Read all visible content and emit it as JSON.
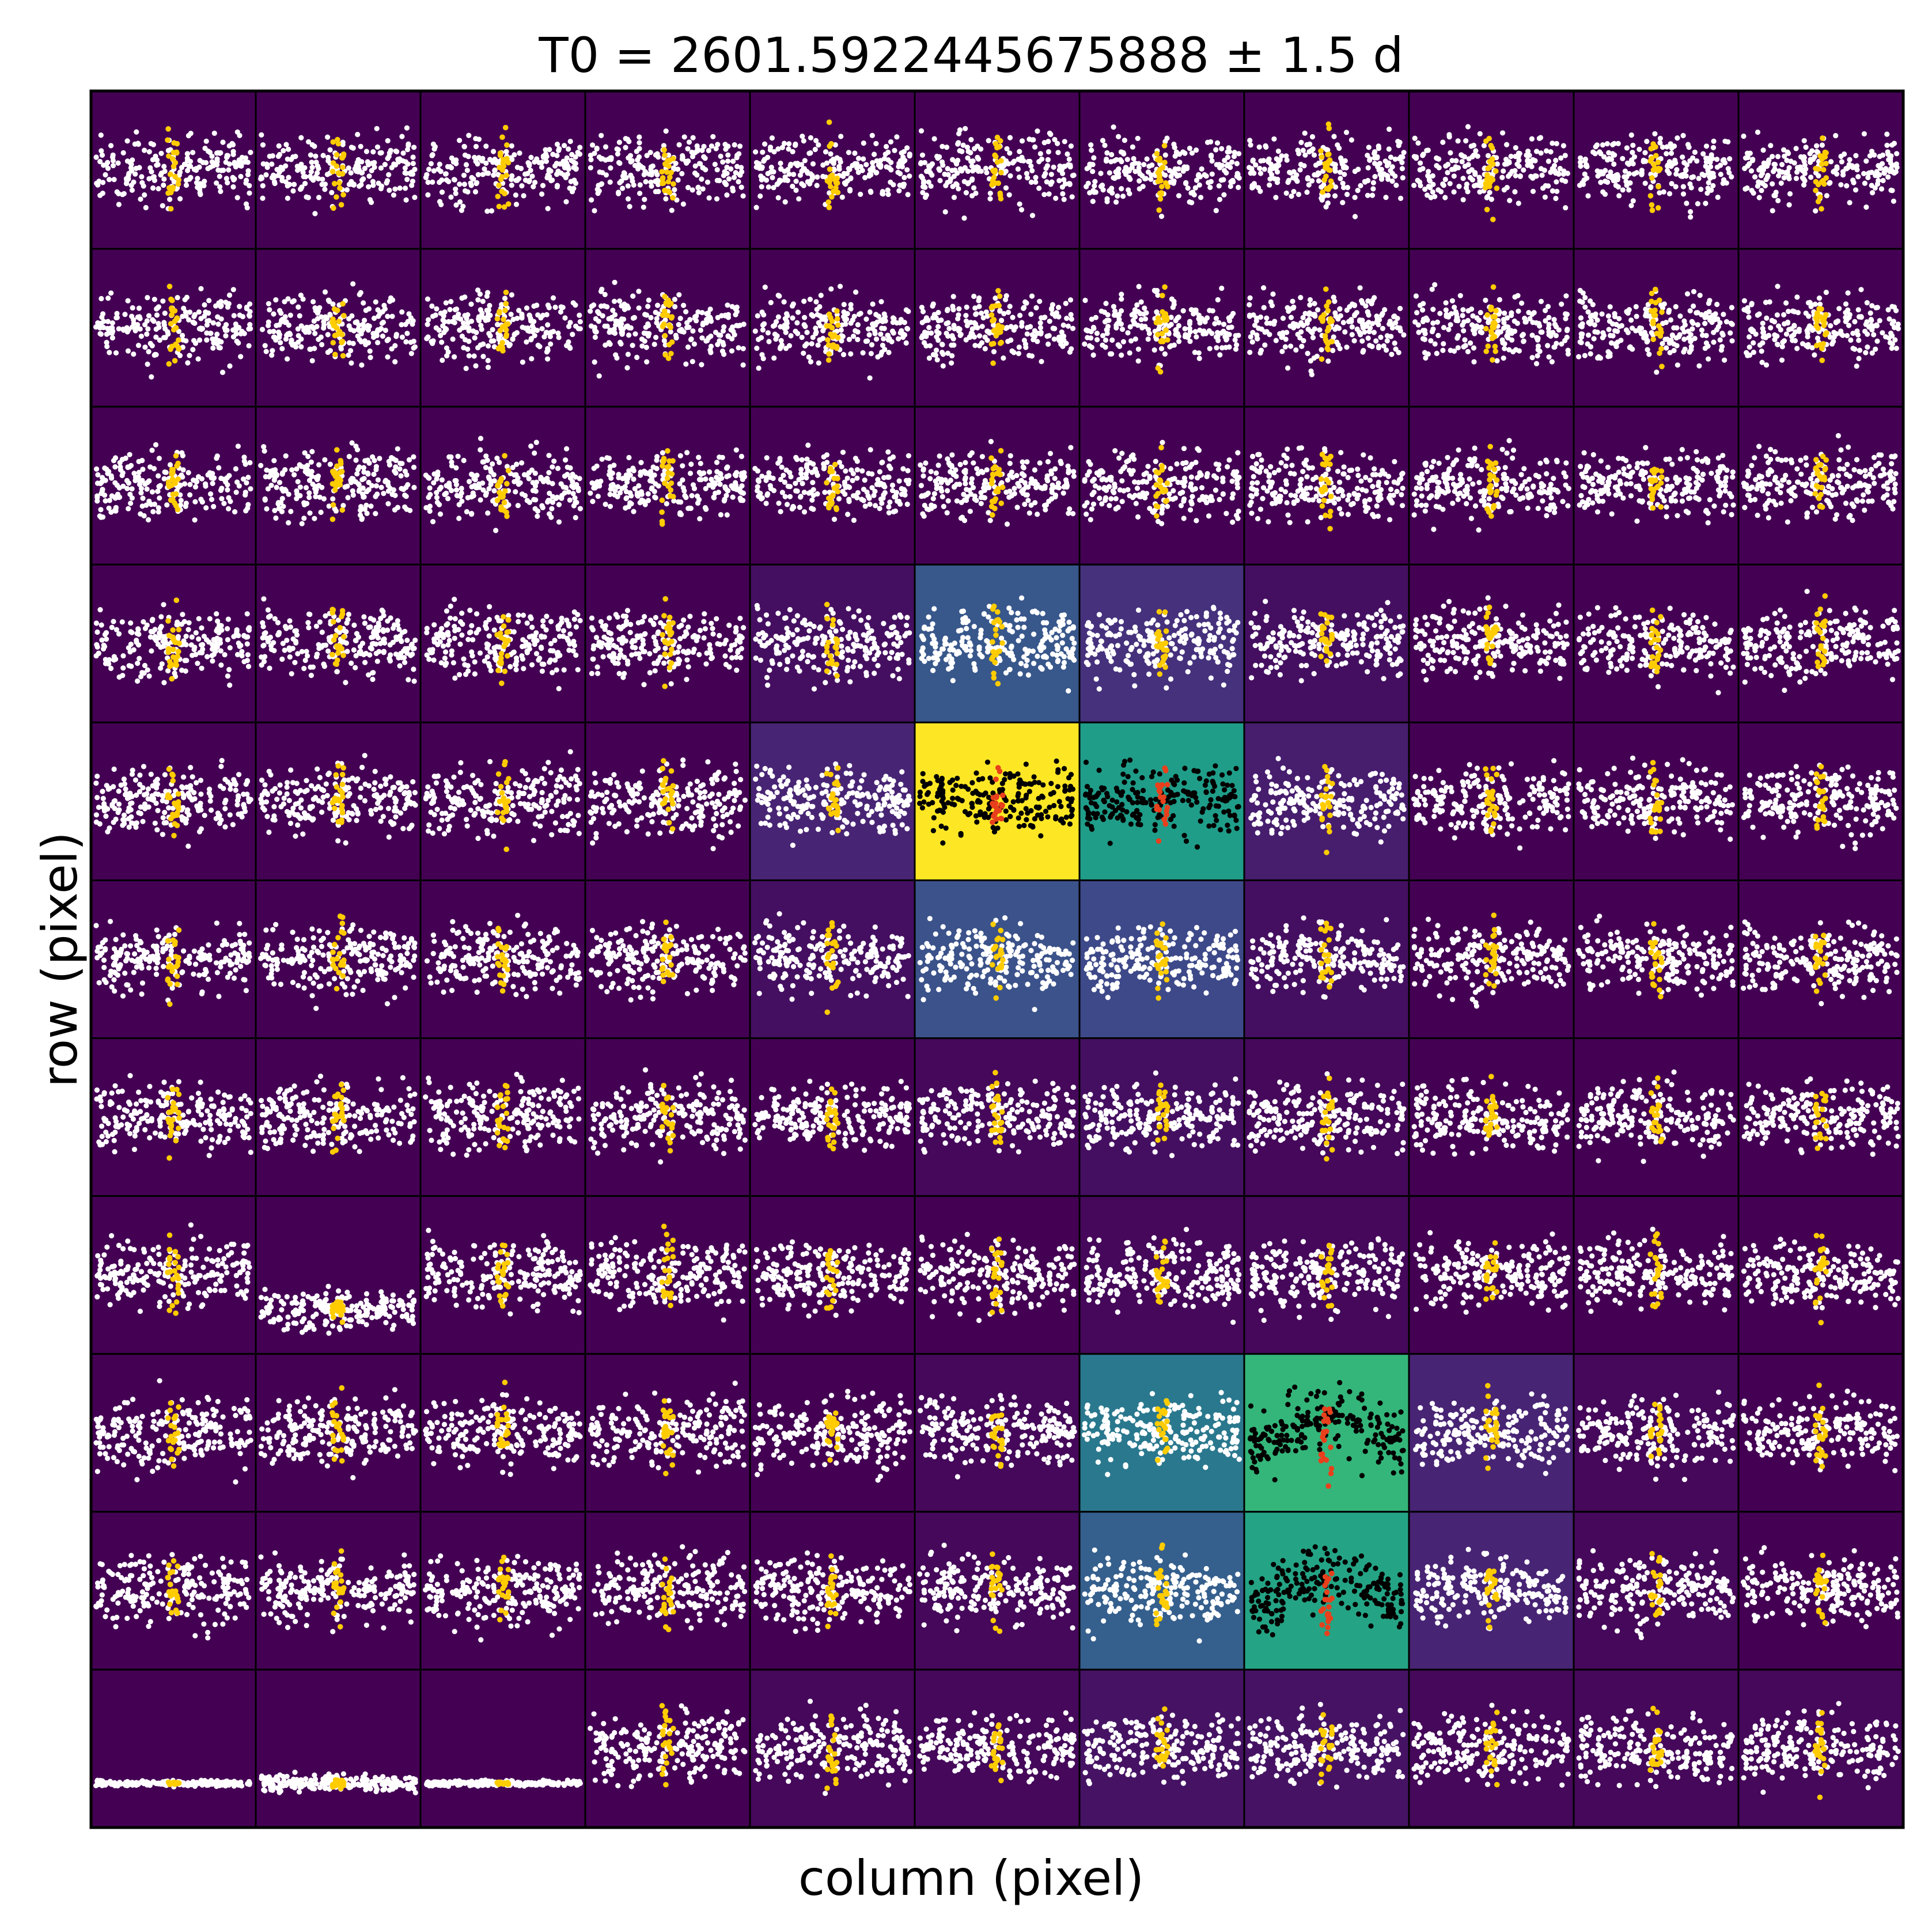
{
  "chart_data": {
    "type": "scatter",
    "title": "T0 = 2601.5922445675888 ± 1.5 d",
    "xlabel": "column (pixel)",
    "ylabel": "row (pixel)",
    "grid": {
      "rows": 11,
      "cols": 11
    },
    "colormap": "viridis",
    "colormap_stops": [
      "#440154",
      "#482878",
      "#3e4a89",
      "#31688e",
      "#26828e",
      "#1f9e89",
      "#35b779",
      "#6ece58",
      "#b5de2b",
      "#fde725"
    ],
    "pixel_flux_normalized": [
      [
        0.0,
        0.0,
        0.0,
        0.0,
        0.0,
        0.0,
        0.0,
        0.0,
        0.0,
        0.0,
        0.0
      ],
      [
        0.0,
        0.0,
        0.0,
        0.0,
        0.0,
        0.0,
        0.0,
        0.0,
        0.0,
        0.0,
        0.0
      ],
      [
        0.0,
        0.0,
        0.0,
        0.0,
        0.0,
        0.0,
        0.0,
        0.0,
        0.0,
        0.0,
        0.0
      ],
      [
        0.0,
        0.0,
        0.0,
        0.0,
        0.04,
        0.27,
        0.14,
        0.04,
        0.0,
        0.0,
        0.0
      ],
      [
        0.0,
        0.0,
        0.0,
        0.0,
        0.1,
        1.0,
        0.55,
        0.08,
        0.0,
        0.0,
        0.0
      ],
      [
        0.0,
        0.0,
        0.0,
        0.0,
        0.04,
        0.25,
        0.22,
        0.04,
        0.0,
        0.0,
        0.0
      ],
      [
        0.0,
        0.0,
        0.0,
        0.0,
        0.0,
        0.02,
        0.04,
        0.02,
        0.0,
        0.0,
        0.0
      ],
      [
        0.0,
        0.0,
        0.0,
        0.0,
        0.0,
        0.0,
        0.02,
        0.02,
        0.0,
        0.0,
        0.0
      ],
      [
        0.0,
        0.0,
        0.0,
        0.0,
        0.0,
        0.02,
        0.4,
        0.66,
        0.1,
        0.02,
        0.0
      ],
      [
        0.0,
        0.0,
        0.0,
        0.0,
        0.0,
        0.02,
        0.3,
        0.58,
        0.1,
        0.02,
        0.0
      ],
      [
        0.0,
        0.0,
        0.0,
        0.0,
        0.02,
        0.02,
        0.05,
        0.05,
        0.02,
        0.02,
        0.02
      ]
    ],
    "aperture_pixels": [
      [
        4,
        5
      ],
      [
        4,
        6
      ],
      [
        8,
        7
      ],
      [
        9,
        7
      ]
    ],
    "point_colors": {
      "outside_aperture": "#ffffff",
      "outside_aperture_in_transit": "#ffcc00",
      "inside_aperture": "#000000",
      "inside_aperture_in_transit": "#e8401c"
    },
    "special_cells": [
      {
        "row": 7,
        "col": 1,
        "band_center": 0.72,
        "band_spread": 0.09
      },
      {
        "row": 10,
        "col": 0,
        "band_center": 0.72,
        "band_spread": 0.012
      },
      {
        "row": 10,
        "col": 1,
        "band_center": 0.72,
        "band_spread": 0.04
      },
      {
        "row": 10,
        "col": 2,
        "band_center": 0.72,
        "band_spread": 0.012
      }
    ]
  }
}
